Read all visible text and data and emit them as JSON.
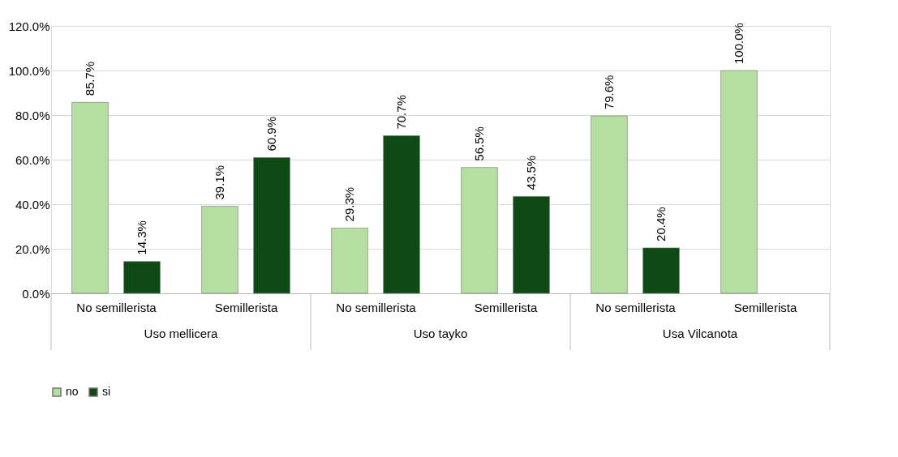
{
  "chart_data": {
    "type": "bar",
    "categories": [
      "No semillerista",
      "Semillerista",
      "No semillerista",
      "Semillerista",
      "No semillerista",
      "Semillerista"
    ],
    "series": [
      {
        "name": "no",
        "color": "#b5dfa0",
        "values": [
          85.7,
          39.1,
          29.3,
          56.5,
          79.6,
          100.0
        ],
        "value_labels": [
          "85.7%",
          "39.1%",
          "29.3%",
          "56.5%",
          "79.6%",
          "100.0%"
        ]
      },
      {
        "name": "si",
        "color": "#0d4a14",
        "values": [
          14.3,
          60.9,
          70.7,
          43.5,
          20.4,
          null
        ],
        "value_labels": [
          "14.3%",
          "60.9%",
          "70.7%",
          "43.5%",
          "20.4%",
          null
        ]
      }
    ],
    "annotations": [
      "Uso mellicera",
      "Uso tayko",
      "Usa Vilcanota"
    ],
    "ylim": [
      0,
      120
    ],
    "yticks": [
      {
        "value": 0,
        "label": "0.0%"
      },
      {
        "value": 20,
        "label": "20.0%"
      },
      {
        "value": 40,
        "label": "40.0%"
      },
      {
        "value": 60,
        "label": "60.0%"
      },
      {
        "value": 80,
        "label": "80.0%"
      },
      {
        "value": 100,
        "label": "100.0%"
      },
      {
        "value": 120,
        "label": "120.0%"
      }
    ],
    "grid": "y",
    "legend": "bottom"
  }
}
